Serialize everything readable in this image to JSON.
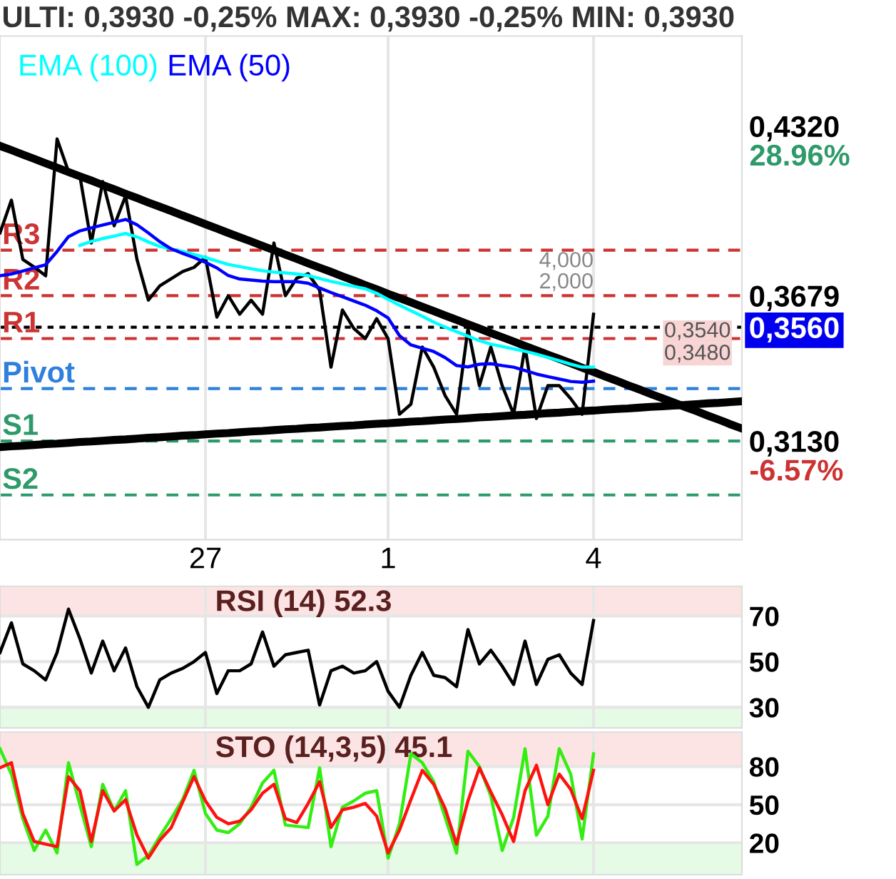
{
  "chart_data": [
    {
      "type": "line",
      "title": "ULTI: 0,3930 -0,25% MAX: 0,3930 -0,25% MIN: 0,3930",
      "ylim": [
        0.2757,
        0.466
      ],
      "categories": [
        null,
        null,
        null,
        null,
        null,
        null,
        null,
        null,
        null,
        null,
        null,
        null,
        null,
        null,
        null,
        null,
        null,
        null,
        "27",
        null,
        null,
        null,
        null,
        null,
        null,
        null,
        null,
        null,
        null,
        null,
        null,
        null,
        null,
        null,
        "1",
        null,
        null,
        null,
        null,
        null,
        null,
        null,
        null,
        null,
        null,
        null,
        null,
        null,
        null,
        null,
        null,
        null,
        "4",
        null,
        null,
        null,
        null,
        null,
        null,
        null,
        null,
        null,
        null,
        null,
        null,
        null
      ],
      "yticks": [
        {
          "value": 0.432,
          "label": "0,4320"
        },
        {
          "value": 0.3679,
          "label": "0,3679"
        },
        {
          "value": 0.356,
          "label": "0,3560"
        },
        {
          "value": 0.313,
          "label": "0,3130"
        }
      ],
      "grid": "x",
      "legend": "top left",
      "series": [
        {
          "color": "#000000",
          "values": [
            0.3916,
            0.404,
            0.3816,
            0.3787,
            0.3754,
            0.4271,
            0.4148,
            0.4131,
            0.3878,
            0.411,
            0.3943,
            0.4056,
            0.3816,
            0.3662,
            0.3716,
            0.3743,
            0.377,
            0.3786,
            0.3824,
            0.3598,
            0.3679,
            0.3609,
            0.3662,
            0.3609,
            0.3878,
            0.3679,
            0.3745,
            0.3762,
            0.37,
            0.3409,
            0.3625,
            0.3555,
            0.3517,
            0.3592,
            0.3517,
            0.3231,
            0.3269,
            0.3485,
            0.3409,
            0.3301,
            0.3231,
            0.3555,
            0.3339,
            0.3485,
            0.3339,
            0.3231,
            0.3485,
            0.3215,
            0.3339,
            0.3339,
            0.329,
            0.3231,
            0.3609,
            null,
            null,
            null,
            null,
            null,
            null,
            null,
            null,
            null,
            null,
            null,
            null,
            null
          ]
        },
        {
          "name": "EMA (100)",
          "color": "#00ffff",
          "values": [
            null,
            null,
            null,
            null,
            null,
            null,
            null,
            0.3869,
            0.3884,
            0.3895,
            0.3904,
            0.3914,
            0.3901,
            0.3882,
            0.3865,
            0.3855,
            0.3846,
            0.3835,
            0.3823,
            0.381,
            0.3797,
            0.3789,
            0.3781,
            0.3773,
            0.3768,
            0.3765,
            0.3761,
            0.3755,
            0.3744,
            0.3733,
            0.3724,
            0.3714,
            0.3705,
            0.3688,
            0.3665,
            0.3643,
            0.3622,
            0.3601,
            0.3579,
            0.356,
            0.3543,
            0.3526,
            0.3509,
            0.3496,
            0.3487,
            0.3478,
            0.3469,
            0.3458,
            0.3446,
            0.3433,
            0.342,
            0.3409,
            0.3409,
            null,
            null,
            null,
            null,
            null,
            null,
            null,
            null,
            null,
            null,
            null,
            null,
            null
          ]
        },
        {
          "name": "EMA (50)",
          "color": "#0000ff",
          "values": [
            0.3754,
            0.3761,
            0.3772,
            0.3784,
            0.3796,
            0.3846,
            0.3902,
            0.3924,
            0.3935,
            0.3946,
            0.3956,
            0.3967,
            0.3947,
            0.3916,
            0.3883,
            0.3856,
            0.3839,
            0.3823,
            0.3805,
            0.3784,
            0.3755,
            0.3742,
            0.3738,
            0.3734,
            0.3732,
            0.3732,
            0.3732,
            0.3726,
            0.3708,
            0.3691,
            0.3675,
            0.3659,
            0.3643,
            0.3622,
            0.3595,
            0.3528,
            0.3493,
            0.348,
            0.3468,
            0.3445,
            0.3415,
            0.341,
            0.342,
            0.3422,
            0.3415,
            0.3409,
            0.3396,
            0.3383,
            0.3373,
            0.3364,
            0.3355,
            0.3352,
            0.3356,
            null,
            null,
            null,
            null,
            null,
            null,
            null,
            null,
            null,
            null,
            null,
            null,
            null
          ]
        },
        {
          "color": "#000000",
          "values": [
            0.4245,
            0.4229,
            0.4212,
            0.4196,
            0.4179,
            0.4163,
            0.4146,
            0.413,
            0.4114,
            0.4097,
            0.4081,
            0.4064,
            0.4048,
            0.4031,
            0.4015,
            0.3999,
            0.3982,
            0.3966,
            0.3949,
            0.3933,
            0.3916,
            0.39,
            0.3884,
            0.3867,
            0.3851,
            0.3834,
            0.3818,
            0.3801,
            0.3785,
            0.3769,
            0.3752,
            0.3736,
            0.3719,
            0.3703,
            0.3686,
            0.367,
            0.3654,
            0.3637,
            0.3621,
            0.3604,
            0.3588,
            0.3571,
            0.3555,
            0.3538,
            0.3522,
            0.3506,
            0.3489,
            0.3473,
            0.3456,
            0.344,
            0.3424,
            0.3407,
            0.3391,
            0.3374,
            0.3358,
            0.3341,
            0.3325,
            0.3308,
            0.3292,
            0.3276,
            0.3259,
            0.3243,
            0.3226,
            0.321,
            0.3193,
            0.3177
          ]
        },
        {
          "color": "#000000",
          "values": [
            0.3107,
            0.311,
            0.3112,
            0.3115,
            0.3118,
            0.312,
            0.3123,
            0.3126,
            0.3128,
            0.3131,
            0.3134,
            0.3136,
            0.3139,
            0.3142,
            0.3144,
            0.3147,
            0.315,
            0.3152,
            0.3155,
            0.3158,
            0.316,
            0.3163,
            0.3166,
            0.3168,
            0.3171,
            0.3174,
            0.3176,
            0.3179,
            0.3181,
            0.3184,
            0.3187,
            0.3189,
            0.3192,
            0.3195,
            0.3197,
            0.32,
            0.3203,
            0.3205,
            0.3208,
            0.3211,
            0.3213,
            0.3216,
            0.3219,
            0.3221,
            0.3224,
            0.3227,
            0.3229,
            0.3232,
            0.3235,
            0.3237,
            0.324,
            0.3243,
            0.3245,
            0.3248,
            0.3251,
            0.3253,
            0.3256,
            0.3259,
            0.3261,
            0.3264,
            0.3266,
            0.3269,
            0.3272,
            0.3274,
            0.3277,
            0.328
          ]
        }
      ],
      "ref_lines": [
        {
          "axis": "y",
          "value": 0.3851,
          "label": "R3",
          "color": "#cc3333",
          "line_style": "dashed"
        },
        {
          "axis": "y",
          "value": 0.3679,
          "label": "R2",
          "color": "#cc3333",
          "line_style": "dashed"
        },
        {
          "axis": "y",
          "value": 0.356,
          "label": null,
          "color": "#000000",
          "line_style": "dotted"
        },
        {
          "axis": "y",
          "value": 0.3517,
          "label": "R1",
          "color": "#cc3333",
          "line_style": "dashed"
        },
        {
          "axis": "y",
          "value": 0.3328,
          "label": "Pivot",
          "color": "#2f7fdc",
          "line_style": "dashed"
        },
        {
          "axis": "y",
          "value": 0.313,
          "label": "S1",
          "color": "#2e9a6a",
          "line_style": "dashed"
        },
        {
          "axis": "y",
          "value": 0.2926,
          "label": "S2",
          "color": "#2e9a6a",
          "line_style": "dashed"
        }
      ],
      "annotations": [
        "28.96%",
        "-6.57%",
        "0,3540",
        "0,3480",
        "4,000",
        "2,000"
      ]
    },
    {
      "type": "line",
      "title": "RSI (14) 52.3",
      "ylim": [
        21,
        83
      ],
      "categories": [
        null,
        null,
        null,
        null,
        null,
        null,
        null,
        null,
        null,
        null,
        null,
        null,
        null,
        null,
        null,
        null,
        null,
        null,
        "27",
        null,
        null,
        null,
        null,
        null,
        null,
        null,
        null,
        null,
        null,
        null,
        null,
        null,
        null,
        null,
        "1",
        null,
        null,
        null,
        null,
        null,
        null,
        null,
        null,
        null,
        null,
        null,
        null,
        null,
        null,
        null,
        null,
        null,
        "4",
        null,
        null,
        null,
        null,
        null,
        null,
        null,
        null,
        null,
        null,
        null,
        null,
        null
      ],
      "yticks": [
        70,
        50,
        30
      ],
      "grid": true,
      "tick_labels": "y",
      "bands": [
        {
          "axis": "y",
          "from": 70,
          "to": 83,
          "color": "#fde4e4"
        },
        {
          "axis": "y",
          "from": 21,
          "to": 30,
          "color": "#e6fbe6"
        }
      ],
      "series": [
        {
          "color": "#000000",
          "values": [
            54,
            67,
            49,
            46,
            42,
            54,
            73,
            60,
            45,
            59,
            46,
            56,
            39,
            30,
            42,
            45,
            47,
            50,
            54,
            36,
            46,
            46,
            49,
            63,
            48,
            53,
            54,
            55,
            31,
            46,
            48,
            45,
            46,
            50,
            37,
            30,
            44,
            54,
            44,
            43,
            39,
            64,
            49,
            55,
            48,
            40,
            59,
            40,
            51,
            53,
            45,
            40,
            68,
            null,
            null,
            null,
            null,
            null,
            null,
            null,
            null,
            null,
            null,
            null,
            null,
            null
          ]
        }
      ]
    },
    {
      "type": "line",
      "title": "STO (14,3,5) 45.1",
      "ylim": [
        -5,
        107
      ],
      "categories": [
        null,
        null,
        null,
        null,
        null,
        null,
        null,
        null,
        null,
        null,
        null,
        null,
        null,
        null,
        null,
        null,
        null,
        null,
        "27",
        null,
        null,
        null,
        null,
        null,
        null,
        null,
        null,
        null,
        null,
        null,
        null,
        null,
        null,
        null,
        "1",
        null,
        null,
        null,
        null,
        null,
        null,
        null,
        null,
        null,
        null,
        null,
        null,
        null,
        null,
        null,
        null,
        null,
        "4",
        null,
        null,
        null,
        null,
        null,
        null,
        null,
        null,
        null,
        null,
        null,
        null,
        null
      ],
      "yticks": [
        80,
        50,
        20
      ],
      "grid": true,
      "tick_labels": "y",
      "bands": [
        {
          "axis": "y",
          "from": 80,
          "to": 107,
          "color": "#fde4e4"
        },
        {
          "axis": "y",
          "from": -5,
          "to": 20,
          "color": "#e6fbe6"
        }
      ],
      "series": [
        {
          "color": "#33ee11",
          "values": [
            94,
            74,
            39,
            14,
            30,
            12,
            83,
            50,
            17,
            66,
            45,
            61,
            3,
            10,
            25,
            39,
            54,
            77,
            43,
            30,
            28,
            35,
            48,
            67,
            77,
            34,
            33,
            32,
            79,
            17,
            48,
            53,
            59,
            61,
            8,
            35,
            90,
            83,
            68,
            40,
            12,
            92,
            80,
            57,
            14,
            40,
            94,
            26,
            41,
            94,
            74,
            23,
            90,
            null,
            null,
            null,
            null,
            null,
            null,
            null,
            null,
            null,
            null,
            null,
            null,
            null
          ]
        },
        {
          "color": "#ff1111",
          "values": [
            79,
            83,
            43,
            21,
            19,
            17,
            72,
            61,
            21,
            61,
            45,
            54,
            26,
            8,
            22,
            32,
            52,
            72,
            53,
            40,
            35,
            37,
            46,
            59,
            66,
            39,
            36,
            51,
            68,
            32,
            46,
            48,
            51,
            41,
            12,
            30,
            54,
            77,
            66,
            47,
            19,
            53,
            79,
            60,
            42,
            21,
            61,
            81,
            50,
            74,
            62,
            39,
            77,
            null,
            null,
            null,
            null,
            null,
            null,
            null,
            null,
            null,
            null,
            null,
            null,
            null
          ]
        }
      ]
    }
  ]
}
